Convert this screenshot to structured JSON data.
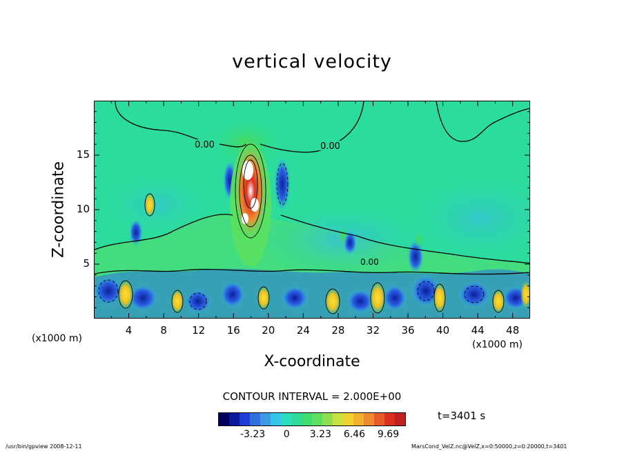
{
  "chart_data": {
    "type": "heatmap",
    "title": "vertical velocity",
    "xlabel": "X-coordinate",
    "ylabel": "Z-coordinate",
    "x_unit_left": "(x1000 m)",
    "x_unit_right": "(x1000 m)",
    "xlim": [
      0,
      50
    ],
    "ylim": [
      0,
      20
    ],
    "x_ticks": [
      "4",
      "8",
      "12",
      "16",
      "20",
      "24",
      "28",
      "32",
      "36",
      "40",
      "44",
      "48"
    ],
    "y_ticks": [
      "5",
      "10",
      "15"
    ],
    "contour_interval_label": "CONTOUR INTERVAL = 2.000E+00",
    "contour_labels": [
      "0.00",
      "0.00",
      "0.00"
    ],
    "colorbar": {
      "ticks": [
        "-3.23",
        "0",
        "3.23",
        "6.46",
        "9.69"
      ],
      "tick_values": [
        -3.23,
        0,
        3.23,
        6.46,
        9.69
      ],
      "range": [
        -6.46,
        11.3
      ]
    },
    "time_label": "t=3401 s",
    "footer_left": "/usr/bin/gpview   2008-12-11",
    "footer_right": "MarsCond_VelZ.nc@VelZ,x=0:50000,z=0:20000,t=3401",
    "colors": {
      "background_field": "#2bdc9c",
      "updraft_core": "#e85a2a",
      "downdraft": "#1d3fd8",
      "weak_positive": "#5be060",
      "strong_positive": "#f2d030"
    }
  }
}
